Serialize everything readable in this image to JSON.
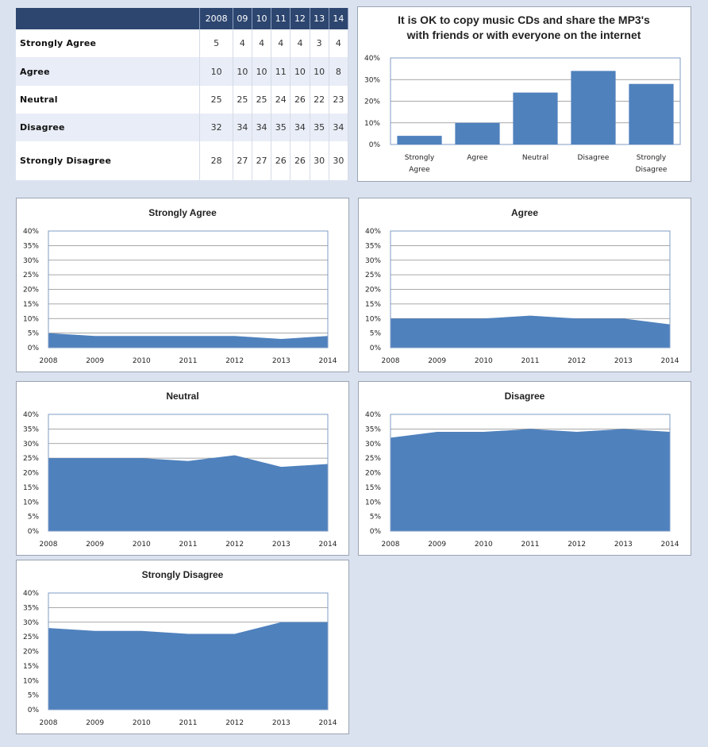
{
  "table": {
    "years": [
      "2008",
      "09",
      "10",
      "11",
      "12",
      "13",
      "14"
    ],
    "rows": [
      {
        "label": "Strongly Agree",
        "values": [
          "5",
          "4",
          "4",
          "4",
          "4",
          "3",
          "4"
        ]
      },
      {
        "label": "Agree",
        "values": [
          "10",
          "10",
          "10",
          "11",
          "10",
          "10",
          "8"
        ]
      },
      {
        "label": "Neutral",
        "values": [
          "25",
          "25",
          "25",
          "24",
          "26",
          "22",
          "23"
        ]
      },
      {
        "label": "Disagree",
        "values": [
          "32",
          "34",
          "34",
          "35",
          "34",
          "35",
          "34"
        ]
      },
      {
        "label": "Strongly Disagree",
        "values": [
          "28",
          "27",
          "27",
          "26",
          "26",
          "30",
          "30"
        ]
      }
    ]
  },
  "colors": {
    "fill": "#4f81bd",
    "header": "#2d4670",
    "background": "#dbe2ef"
  },
  "chart_data": [
    {
      "type": "bar",
      "title_lines": [
        "It is OK to copy music CDs and share the MP3's",
        "with friends or with everyone on the internet"
      ],
      "categories": [
        [
          "Strongly",
          "Agree"
        ],
        [
          "Agree"
        ],
        [
          "Neutral"
        ],
        [
          "Disagree"
        ],
        [
          "Strongly",
          "Disagree"
        ]
      ],
      "values": [
        4,
        10,
        24,
        34,
        28
      ],
      "y_ticks": [
        "0%",
        "10%",
        "20%",
        "30%",
        "40%"
      ],
      "ylim": [
        0,
        40
      ],
      "grid": true
    },
    {
      "type": "area",
      "title": "Strongly Agree",
      "x": [
        "2008",
        "2009",
        "2010",
        "2011",
        "2012",
        "2013",
        "2014"
      ],
      "values": [
        5,
        4,
        4,
        4,
        4,
        3,
        4
      ],
      "ylim": [
        0,
        40
      ],
      "y_ticks": [
        "0%",
        "5%",
        "10%",
        "15%",
        "20%",
        "25%",
        "30%",
        "35%",
        "40%"
      ],
      "grid": true
    },
    {
      "type": "area",
      "title": "Agree",
      "x": [
        "2008",
        "2009",
        "2010",
        "2011",
        "2012",
        "2013",
        "2014"
      ],
      "values": [
        10,
        10,
        10,
        11,
        10,
        10,
        8
      ],
      "ylim": [
        0,
        40
      ],
      "y_ticks": [
        "0%",
        "5%",
        "10%",
        "15%",
        "20%",
        "25%",
        "30%",
        "35%",
        "40%"
      ],
      "grid": true
    },
    {
      "type": "area",
      "title": "Neutral",
      "x": [
        "2008",
        "2009",
        "2010",
        "2011",
        "2012",
        "2013",
        "2014"
      ],
      "values": [
        25,
        25,
        25,
        24,
        26,
        22,
        23
      ],
      "ylim": [
        0,
        40
      ],
      "y_ticks": [
        "0%",
        "5%",
        "10%",
        "15%",
        "20%",
        "25%",
        "30%",
        "35%",
        "40%"
      ],
      "grid": true
    },
    {
      "type": "area",
      "title": "Disagree",
      "x": [
        "2008",
        "2009",
        "2010",
        "2011",
        "2012",
        "2013",
        "2014"
      ],
      "values": [
        32,
        34,
        34,
        35,
        34,
        35,
        34
      ],
      "ylim": [
        0,
        40
      ],
      "y_ticks": [
        "0%",
        "5%",
        "10%",
        "15%",
        "20%",
        "25%",
        "30%",
        "35%",
        "40%"
      ],
      "grid": true
    },
    {
      "type": "area",
      "title": "Strongly Disagree",
      "x": [
        "2008",
        "2009",
        "2010",
        "2011",
        "2012",
        "2013",
        "2014"
      ],
      "values": [
        28,
        27,
        27,
        26,
        26,
        30,
        30
      ],
      "ylim": [
        0,
        40
      ],
      "y_ticks": [
        "0%",
        "5%",
        "10%",
        "15%",
        "20%",
        "25%",
        "30%",
        "35%",
        "40%"
      ],
      "grid": true
    }
  ]
}
